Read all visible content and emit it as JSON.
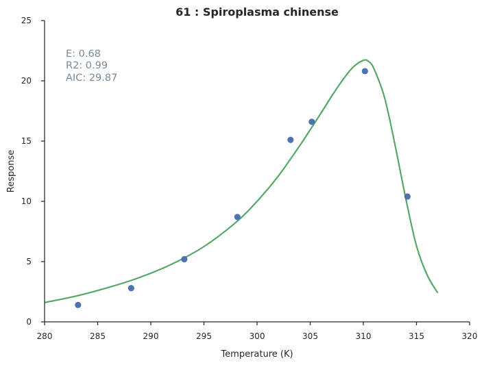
{
  "chart_data": {
    "type": "scatter",
    "title": "61 : Spiroplasma chinense",
    "xlabel": "Temperature (K)",
    "ylabel": "Response",
    "xlim": [
      280,
      320
    ],
    "ylim": [
      0,
      25
    ],
    "xticks": [
      280,
      285,
      290,
      295,
      300,
      305,
      310,
      315,
      320
    ],
    "yticks": [
      0,
      5,
      10,
      15,
      20,
      25
    ],
    "grid": false,
    "points": {
      "x": [
        283.15,
        288.15,
        293.15,
        298.15,
        303.15,
        305.15,
        310.15,
        314.15
      ],
      "y": [
        1.4,
        2.8,
        5.2,
        8.7,
        15.1,
        16.6,
        20.8,
        10.4
      ]
    },
    "fit_curve": {
      "x": [
        280,
        283,
        286,
        289,
        292,
        295,
        298,
        300,
        302,
        304,
        306,
        307,
        308,
        309,
        310,
        310.5,
        311,
        312,
        313,
        314,
        315,
        316,
        317
      ],
      "y": [
        1.6,
        2.15,
        2.85,
        3.7,
        4.8,
        6.25,
        8.25,
        10.0,
        12.1,
        14.6,
        17.3,
        18.7,
        20.0,
        21.1,
        21.7,
        21.6,
        21.0,
        18.6,
        14.6,
        10.2,
        6.3,
        3.9,
        2.4
      ]
    },
    "annotations": [
      "E:  0.68",
      "R2:  0.99",
      "AIC: 29.87"
    ],
    "colors": {
      "points": "#4c72b0",
      "curve": "#55a868",
      "annotation": "#7a8a99"
    }
  }
}
